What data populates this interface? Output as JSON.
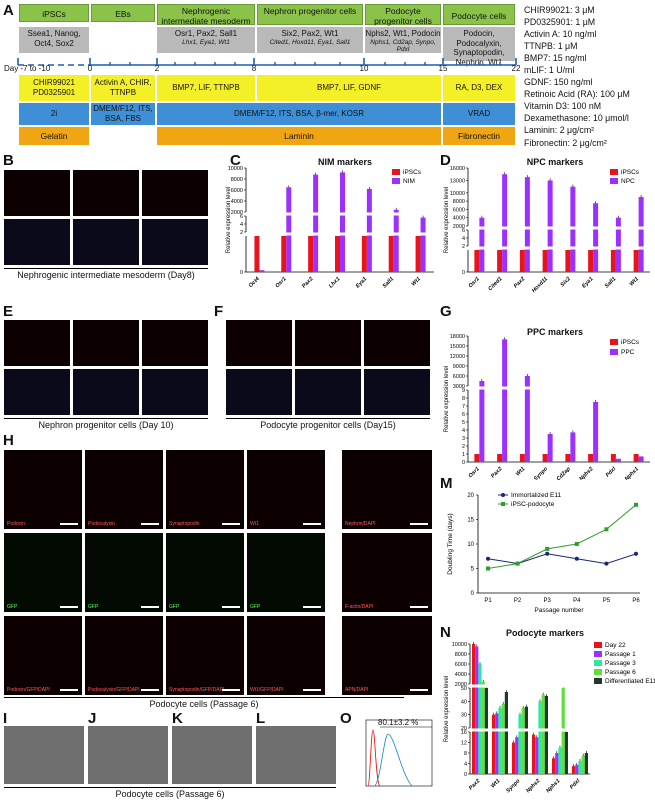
{
  "panels": {
    "A": "A",
    "B": "B",
    "C": "C",
    "D": "D",
    "E": "E",
    "F": "F",
    "G": "G",
    "H": "H",
    "I": "I",
    "J": "J",
    "K": "K",
    "L": "L",
    "M": "M",
    "N": "N",
    "O": "O"
  },
  "stages": [
    "iPSCs",
    "EBs",
    "Nephrogenic intermediate mesoderm",
    "Nephron progenitor cells",
    "Podocyte progenitor cells",
    "Podocyte cells"
  ],
  "markers": [
    {
      "main": "Ssea1, Nanog, Oct4, Sox2",
      "sub": ""
    },
    {
      "main": "Osr1, Pax2, Sall1",
      "sub": "Lhx1, Eya1, Wt1"
    },
    {
      "main": "Six2, Pax2, Wt1",
      "sub": "Cited1, Hoxd11, Eya1, Sall1"
    },
    {
      "main": "Nphs2, Wt1, Podocin",
      "sub": "Nphs1, Cd2ap, Synpo, Pdxl"
    },
    {
      "main": "Podocin, Podocalyxin, Synaptopodin, Nephrin, Wt1",
      "sub": ""
    }
  ],
  "timeline": {
    "days": [
      "Day -7 to -10",
      "0",
      "2",
      "8",
      "10",
      "15",
      "22"
    ]
  },
  "factors": [
    "CHIR99021 PD0325901",
    "Activin A, CHIR, TTNPB",
    "BMP7, LIF, TTNPB",
    "BMP7, LIF, GDNF",
    "RA, D3, DEX"
  ],
  "media": [
    "2i",
    "DMEM/F12, ITS, BSA, FBS",
    "DMEM/F12, ITS, BSA, β-mer, KOSR",
    "VRAD"
  ],
  "coatings": [
    "Gelatin",
    "Laminin",
    "Fibronectin"
  ],
  "concentrations": [
    "CHIR99021: 3 μM",
    "PD0325901: 1 μM",
    "Activin A: 10 ng/ml",
    "TTNPB: 1 μM",
    "BMP7: 15 ng/ml",
    "mLIF: 1 U/ml",
    "GDNF: 150 ng/ml",
    "Retinoic Acid (RA): 100 μM",
    "Vitamin D3: 100 nM",
    "Dexamethasone: 10 μmol/l",
    "Laminin: 2 μg/cm²",
    "Fibronectin: 2 μg/cm²"
  ],
  "captions": {
    "B": "Nephrogenic intermediate mesoderm (Day8)",
    "E": "Nephron progenitor cells (Day 10)",
    "F": "Podocyte progenitor cells (Day15)",
    "H": "Podocyte cells (Passage 6)",
    "IL": "Podocyte cells (Passage 6)"
  },
  "H_labels": [
    [
      "Podocin",
      "Podocalyxin",
      "Synaptopodin",
      "Wt1",
      "Nephrin/DAPI"
    ],
    [
      "GFP",
      "GFP",
      "GFP",
      "GFP",
      "F-actin/DAPI"
    ],
    [
      "Podocin/GFP/DAPI",
      "Podocalyxin/GFP/DAPI",
      "Synaptopodin/GFP/DAPI",
      "Wt1/GFP/DAPI",
      "APN/DAPI"
    ]
  ],
  "O_value": "80.1±3.2 %",
  "colors": {
    "green": "#8bc34a",
    "gray": "#b9b9b9",
    "yellow": "#f4f028",
    "blue": "#3f8fd6",
    "orange": "#f0a512",
    "ipsc": "#e8141c",
    "purple": "#9b30ff"
  },
  "chart_data": [
    {
      "id": "C",
      "type": "bar",
      "title": "NIM markers",
      "ylabel": "Relative expression level",
      "categories": [
        "Oct4",
        "Osr1",
        "Pax2",
        "Lhx1",
        "Eya1",
        "Sall1",
        "Wt1"
      ],
      "yticks": [
        "0",
        "2",
        "4",
        "6",
        "2000",
        "4000",
        "6000",
        "8000",
        "10000"
      ],
      "series": [
        {
          "name": "iPSCs",
          "color": "#e8141c",
          "values": [
            1,
            1,
            1,
            1,
            1,
            1,
            1
          ]
        },
        {
          "name": "NIM",
          "color": "#9b30ff",
          "values": [
            0.05,
            6500,
            8800,
            9200,
            6200,
            2400,
            5.6
          ]
        }
      ]
    },
    {
      "id": "D",
      "type": "bar",
      "title": "NPC markers",
      "ylabel": "Relative expression level",
      "categories": [
        "Osr1",
        "Cited1",
        "Pax2",
        "Hoxd11",
        "Six2",
        "Eya1",
        "Sall1",
        "Wt1"
      ],
      "yticks": [
        "0",
        "2",
        "4",
        "6",
        "2000",
        "4000",
        "6000",
        "8000",
        "10000",
        "13000",
        "16000"
      ],
      "series": [
        {
          "name": "iPSCs",
          "color": "#e8141c",
          "values": [
            1,
            1,
            1,
            1,
            1,
            1,
            1,
            1
          ]
        },
        {
          "name": "NPC",
          "color": "#9b30ff",
          "values": [
            4000,
            14500,
            13800,
            13000,
            11500,
            7500,
            4000,
            9000
          ]
        }
      ]
    },
    {
      "id": "G",
      "type": "bar",
      "title": "PPC markers",
      "ylabel": "Relative expression level",
      "categories": [
        "Osr1",
        "Pax2",
        "Wt1",
        "Synpo",
        "Cd2ap",
        "Nphs2",
        "Pdxl",
        "Nphs1"
      ],
      "yticks": [
        "0",
        "1",
        "2",
        "3",
        "4",
        "5",
        "6",
        "7",
        "8",
        "9",
        "3000",
        "6000",
        "9000",
        "12000",
        "15000",
        "18000"
      ],
      "series": [
        {
          "name": "iPSCs",
          "color": "#e8141c",
          "values": [
            1,
            1,
            1,
            1,
            1,
            1,
            1,
            1
          ]
        },
        {
          "name": "PPC",
          "color": "#9b30ff",
          "values": [
            4500,
            17000,
            6000,
            3.5,
            3.7,
            7.5,
            0.4,
            0.7
          ]
        }
      ]
    },
    {
      "id": "M",
      "type": "line",
      "ylabel": "Doubling Time (days)",
      "xlabel": "Passage number",
      "categories": [
        "P1",
        "P2",
        "P3",
        "P4",
        "P5",
        "P6"
      ],
      "ylim": [
        0,
        20
      ],
      "series": [
        {
          "name": "Immortalized E11",
          "color": "#1a237e",
          "values": [
            7,
            6,
            8,
            7,
            6,
            8
          ]
        },
        {
          "name": "iPSC-podocyte",
          "color": "#2e9e2e",
          "values": [
            5,
            6,
            9,
            10,
            13,
            18
          ]
        }
      ]
    },
    {
      "id": "N",
      "type": "bar",
      "title": "Podocyte markers",
      "ylabel": "Relative expression level",
      "categories": [
        "Pax2",
        "Wt1",
        "Synpo",
        "Nphs2",
        "Nphs1",
        "Pdxl"
      ],
      "yticks": [
        "0",
        "4",
        "8",
        "12",
        "16",
        "20",
        "30",
        "40",
        "50",
        "2000",
        "4000",
        "6000",
        "8000",
        "10000"
      ],
      "series": [
        {
          "name": "Day 22",
          "color": "#e8141c",
          "values": [
            12000,
            30,
            12,
            15,
            6,
            3
          ]
        },
        {
          "name": "Passage 1",
          "color": "#9b30ff",
          "values": [
            9500,
            31,
            14,
            14,
            8,
            3.5
          ]
        },
        {
          "name": "Passage 3",
          "color": "#2ee8a0",
          "values": [
            6000,
            35,
            30,
            40,
            10,
            5
          ]
        },
        {
          "name": "Passage 6",
          "color": "#5ee03a",
          "values": [
            2400,
            38,
            35,
            45,
            50,
            7
          ]
        },
        {
          "name": "Differentiated E11",
          "color": "#1f3a2a",
          "values": [
            50,
            47,
            36,
            44,
            16,
            8
          ]
        }
      ]
    }
  ]
}
